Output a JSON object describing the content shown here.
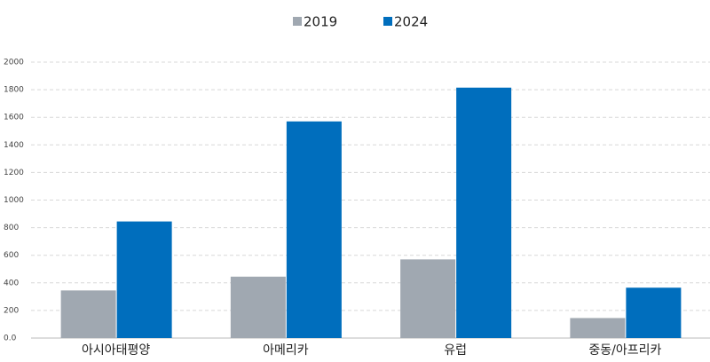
{
  "chart_data": {
    "type": "bar",
    "categories": [
      "아시아태평양",
      "아메리카",
      "유럽",
      "중동/아프리카"
    ],
    "series": [
      {
        "name": "2019",
        "color": "#a0a8b1",
        "values": [
          345,
          445,
          570,
          145
        ]
      },
      {
        "name": "2024",
        "color": "#006ebd",
        "values": [
          845,
          1570,
          1815,
          365
        ]
      }
    ],
    "ylim": [
      0,
      2000
    ],
    "yticks": [
      {
        "value": 0,
        "label": "0.0"
      },
      200,
      400,
      600,
      800,
      1000,
      1200,
      1400,
      1600,
      1800,
      2000
    ],
    "grid": true,
    "legend": "top"
  }
}
